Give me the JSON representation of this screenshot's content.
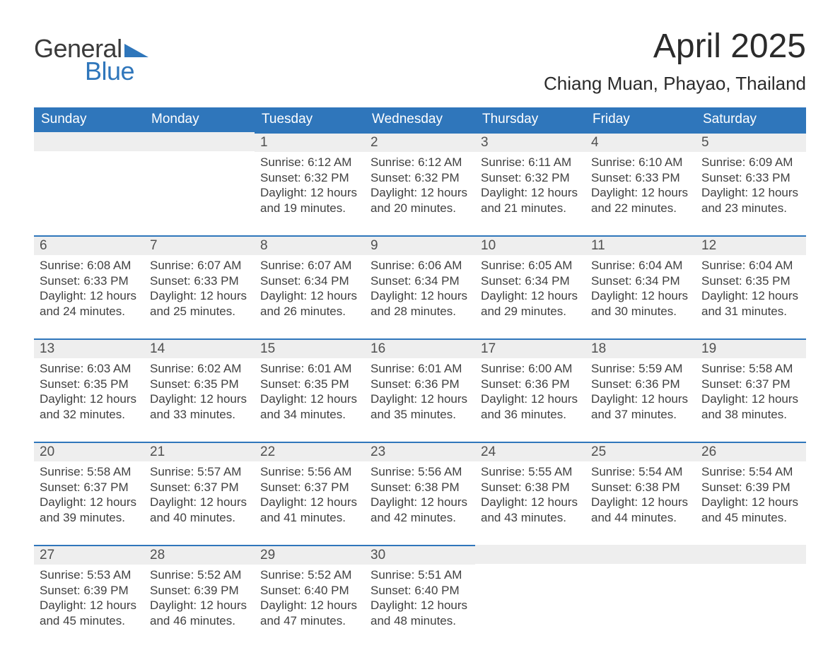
{
  "logo": {
    "text_top": "General",
    "text_bottom": "Blue"
  },
  "title": "April 2025",
  "location": "Chiang Muan, Phayao, Thailand",
  "colors": {
    "header_bg": "#2f76bb",
    "header_fg": "#ffffff",
    "daynum_bg": "#eeeeee",
    "daynum_border": "#2f76bb",
    "body_fg": "#404040",
    "page_bg": "#ffffff",
    "logo_blue": "#2f76bb",
    "logo_dark": "#3a3a3a"
  },
  "weekdays": [
    "Sunday",
    "Monday",
    "Tuesday",
    "Wednesday",
    "Thursday",
    "Friday",
    "Saturday"
  ],
  "labels": {
    "sunrise": "Sunrise:",
    "sunset": "Sunset:",
    "daylight": "Daylight:"
  },
  "weeks": [
    [
      {
        "n": "",
        "empty": true
      },
      {
        "n": "",
        "empty": true
      },
      {
        "n": "1",
        "sunrise": "6:12 AM",
        "sunset": "6:32 PM",
        "daylight": "12 hours and 19 minutes."
      },
      {
        "n": "2",
        "sunrise": "6:12 AM",
        "sunset": "6:32 PM",
        "daylight": "12 hours and 20 minutes."
      },
      {
        "n": "3",
        "sunrise": "6:11 AM",
        "sunset": "6:32 PM",
        "daylight": "12 hours and 21 minutes."
      },
      {
        "n": "4",
        "sunrise": "6:10 AM",
        "sunset": "6:33 PM",
        "daylight": "12 hours and 22 minutes."
      },
      {
        "n": "5",
        "sunrise": "6:09 AM",
        "sunset": "6:33 PM",
        "daylight": "12 hours and 23 minutes."
      }
    ],
    [
      {
        "n": "6",
        "sunrise": "6:08 AM",
        "sunset": "6:33 PM",
        "daylight": "12 hours and 24 minutes."
      },
      {
        "n": "7",
        "sunrise": "6:07 AM",
        "sunset": "6:33 PM",
        "daylight": "12 hours and 25 minutes."
      },
      {
        "n": "8",
        "sunrise": "6:07 AM",
        "sunset": "6:34 PM",
        "daylight": "12 hours and 26 minutes."
      },
      {
        "n": "9",
        "sunrise": "6:06 AM",
        "sunset": "6:34 PM",
        "daylight": "12 hours and 28 minutes."
      },
      {
        "n": "10",
        "sunrise": "6:05 AM",
        "sunset": "6:34 PM",
        "daylight": "12 hours and 29 minutes."
      },
      {
        "n": "11",
        "sunrise": "6:04 AM",
        "sunset": "6:34 PM",
        "daylight": "12 hours and 30 minutes."
      },
      {
        "n": "12",
        "sunrise": "6:04 AM",
        "sunset": "6:35 PM",
        "daylight": "12 hours and 31 minutes."
      }
    ],
    [
      {
        "n": "13",
        "sunrise": "6:03 AM",
        "sunset": "6:35 PM",
        "daylight": "12 hours and 32 minutes."
      },
      {
        "n": "14",
        "sunrise": "6:02 AM",
        "sunset": "6:35 PM",
        "daylight": "12 hours and 33 minutes."
      },
      {
        "n": "15",
        "sunrise": "6:01 AM",
        "sunset": "6:35 PM",
        "daylight": "12 hours and 34 minutes."
      },
      {
        "n": "16",
        "sunrise": "6:01 AM",
        "sunset": "6:36 PM",
        "daylight": "12 hours and 35 minutes."
      },
      {
        "n": "17",
        "sunrise": "6:00 AM",
        "sunset": "6:36 PM",
        "daylight": "12 hours and 36 minutes."
      },
      {
        "n": "18",
        "sunrise": "5:59 AM",
        "sunset": "6:36 PM",
        "daylight": "12 hours and 37 minutes."
      },
      {
        "n": "19",
        "sunrise": "5:58 AM",
        "sunset": "6:37 PM",
        "daylight": "12 hours and 38 minutes."
      }
    ],
    [
      {
        "n": "20",
        "sunrise": "5:58 AM",
        "sunset": "6:37 PM",
        "daylight": "12 hours and 39 minutes."
      },
      {
        "n": "21",
        "sunrise": "5:57 AM",
        "sunset": "6:37 PM",
        "daylight": "12 hours and 40 minutes."
      },
      {
        "n": "22",
        "sunrise": "5:56 AM",
        "sunset": "6:37 PM",
        "daylight": "12 hours and 41 minutes."
      },
      {
        "n": "23",
        "sunrise": "5:56 AM",
        "sunset": "6:38 PM",
        "daylight": "12 hours and 42 minutes."
      },
      {
        "n": "24",
        "sunrise": "5:55 AM",
        "sunset": "6:38 PM",
        "daylight": "12 hours and 43 minutes."
      },
      {
        "n": "25",
        "sunrise": "5:54 AM",
        "sunset": "6:38 PM",
        "daylight": "12 hours and 44 minutes."
      },
      {
        "n": "26",
        "sunrise": "5:54 AM",
        "sunset": "6:39 PM",
        "daylight": "12 hours and 45 minutes."
      }
    ],
    [
      {
        "n": "27",
        "sunrise": "5:53 AM",
        "sunset": "6:39 PM",
        "daylight": "12 hours and 45 minutes."
      },
      {
        "n": "28",
        "sunrise": "5:52 AM",
        "sunset": "6:39 PM",
        "daylight": "12 hours and 46 minutes."
      },
      {
        "n": "29",
        "sunrise": "5:52 AM",
        "sunset": "6:40 PM",
        "daylight": "12 hours and 47 minutes."
      },
      {
        "n": "30",
        "sunrise": "5:51 AM",
        "sunset": "6:40 PM",
        "daylight": "12 hours and 48 minutes."
      },
      {
        "n": "",
        "empty": true
      },
      {
        "n": "",
        "empty": true
      },
      {
        "n": "",
        "empty": true
      }
    ]
  ]
}
